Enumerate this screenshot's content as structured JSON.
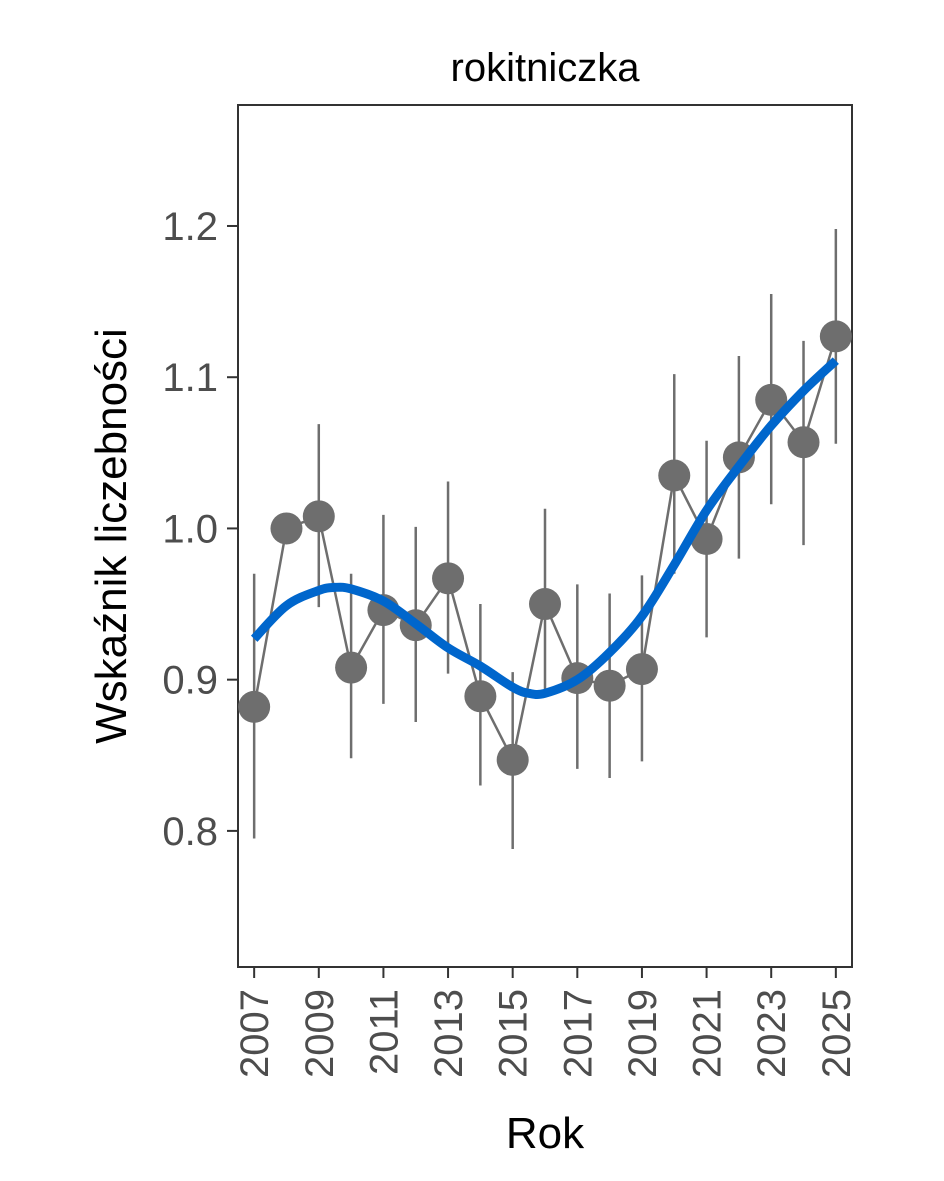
{
  "chart_data": {
    "type": "line",
    "title": "rokitniczka",
    "xlabel": "Rok",
    "ylabel": "Wskaźnik liczebności",
    "xlim": [
      2006.5,
      2025.5
    ],
    "ylim": [
      0.71,
      1.28
    ],
    "x_ticks": [
      2007,
      2009,
      2011,
      2013,
      2015,
      2017,
      2019,
      2021,
      2023,
      2025
    ],
    "y_ticks": [
      0.8,
      0.9,
      1.0,
      1.1,
      1.2
    ],
    "y_tick_labels": [
      "0.8",
      "0.9",
      "1.0",
      "1.1",
      "1.2"
    ],
    "grid": false,
    "series": [
      {
        "kind": "points_with_errorbars",
        "color": "#6e6e6e",
        "x": [
          2007,
          2008,
          2009,
          2010,
          2011,
          2012,
          2013,
          2014,
          2015,
          2016,
          2017,
          2018,
          2019,
          2020,
          2021,
          2022,
          2023,
          2024,
          2025
        ],
        "y": [
          0.882,
          1.0,
          1.008,
          0.908,
          0.946,
          0.936,
          0.967,
          0.889,
          0.847,
          0.95,
          0.901,
          0.896,
          0.907,
          1.035,
          0.993,
          1.047,
          1.085,
          1.057,
          1.127
        ],
        "lower": [
          0.795,
          null,
          0.948,
          0.848,
          0.884,
          0.872,
          0.904,
          0.83,
          0.788,
          0.889,
          0.841,
          0.835,
          0.846,
          0.97,
          0.928,
          0.98,
          1.016,
          0.989,
          1.056
        ],
        "upper": [
          0.97,
          null,
          1.069,
          0.97,
          1.009,
          1.001,
          1.031,
          0.95,
          0.905,
          1.013,
          0.963,
          0.957,
          0.969,
          1.102,
          1.058,
          1.114,
          1.155,
          1.124,
          1.198
        ]
      },
      {
        "kind": "trend",
        "color": "#0066cc",
        "x": [
          2007,
          2008,
          2009,
          2009.5,
          2010,
          2011,
          2012,
          2013,
          2014,
          2015,
          2015.5,
          2016,
          2017,
          2018,
          2019,
          2020,
          2021,
          2022,
          2023,
          2024,
          2025
        ],
        "y": [
          0.927,
          0.949,
          0.959,
          0.961,
          0.96,
          0.952,
          0.937,
          0.921,
          0.909,
          0.895,
          0.891,
          0.891,
          0.9,
          0.918,
          0.942,
          0.976,
          1.012,
          1.041,
          1.068,
          1.091,
          1.111
        ]
      }
    ]
  }
}
